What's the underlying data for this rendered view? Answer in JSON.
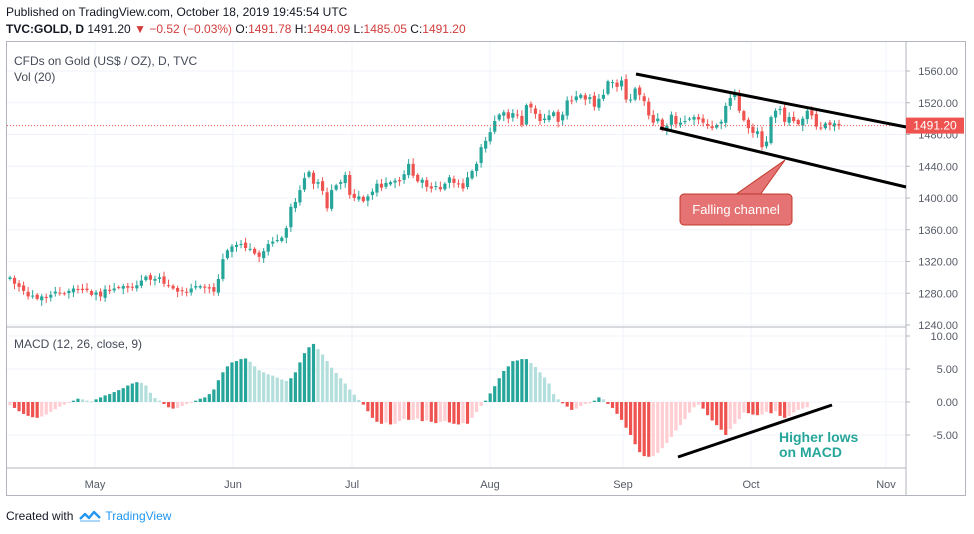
{
  "header": {
    "published": "Published on TradingView.com, October 18, 2019 19:45:54 UTC",
    "symbol_line": "TVC:GOLD, D",
    "last": "1491.20",
    "change": "−0.52 (−0.03%)",
    "o_label": "O:",
    "o_value": "1491.78",
    "h_label": "H:",
    "h_value": "1494.09",
    "l_label": "L:",
    "l_value": "1485.05",
    "c_label": "C:",
    "c_value": "1491.20"
  },
  "footer": {
    "created_with": "Created with",
    "brand": "TradingView"
  },
  "colors": {
    "up": "#26a69a",
    "down": "#ef5350",
    "up_light": "#b2dfdb",
    "down_light": "#ffcdd2",
    "price_tag": "#ef5350",
    "annotation_box": "#e57373",
    "annotation_text_green": "#26a69a"
  },
  "chart_data": [
    {
      "type": "candlestick",
      "title": "CFDs on Gold (US$ / OZ), D, TVC",
      "sub_indicator": "Vol (20)",
      "y_ticks": [
        "1560.00",
        "1520.00",
        "1480.00",
        "1440.00",
        "1400.00",
        "1360.00",
        "1320.00",
        "1280.00",
        "1240.00"
      ],
      "ylim": [
        1240,
        1570
      ],
      "x_ticks": [
        "May",
        "Jun",
        "Jul",
        "Aug",
        "Sep",
        "Oct",
        "Nov"
      ],
      "current_price_label": "1491.20",
      "current_price": 1491.2,
      "closes": [
        1300,
        1292,
        1288,
        1283,
        1276,
        1277,
        1273,
        1276,
        1274,
        1278,
        1282,
        1280,
        1279,
        1283,
        1286,
        1285,
        1284,
        1284,
        1278,
        1281,
        1276,
        1285,
        1283,
        1286,
        1287,
        1289,
        1287,
        1288,
        1290,
        1296,
        1301,
        1297,
        1298,
        1300,
        1292,
        1290,
        1286,
        1282,
        1283,
        1281,
        1286,
        1289,
        1289,
        1287,
        1286,
        1282,
        1298,
        1323,
        1334,
        1339,
        1341,
        1342,
        1337,
        1336,
        1330,
        1326,
        1333,
        1342,
        1345,
        1347,
        1350,
        1362,
        1389,
        1395,
        1410,
        1425,
        1433,
        1418,
        1420,
        1409,
        1387,
        1410,
        1416,
        1420,
        1429,
        1404,
        1400,
        1402,
        1396,
        1402,
        1408,
        1418,
        1413,
        1419,
        1420,
        1422,
        1421,
        1430,
        1443,
        1428,
        1421,
        1423,
        1414,
        1412,
        1415,
        1411,
        1418,
        1426,
        1419,
        1418,
        1412,
        1426,
        1434,
        1443,
        1464,
        1472,
        1483,
        1497,
        1505,
        1508,
        1500,
        1507,
        1504,
        1492,
        1517,
        1514,
        1506,
        1497,
        1500,
        1504,
        1508,
        1496,
        1505,
        1523,
        1522,
        1528,
        1530,
        1524,
        1527,
        1515,
        1525,
        1530,
        1547,
        1546,
        1540,
        1548,
        1524,
        1524,
        1538,
        1530,
        1522,
        1504,
        1495,
        1500,
        1486,
        1491,
        1505,
        1493,
        1495,
        1497,
        1500,
        1502,
        1499,
        1495,
        1491,
        1488,
        1492,
        1496,
        1516,
        1526,
        1531,
        1510,
        1498,
        1488,
        1482,
        1484,
        1464,
        1471,
        1502,
        1510,
        1512,
        1496,
        1502,
        1497,
        1493,
        1500,
        1510,
        1504,
        1490,
        1488,
        1494,
        1492,
        1494,
        1491.2
      ],
      "annotations": [
        "Falling channel"
      ]
    },
    {
      "type": "histogram",
      "title": "MACD (12, 26, close, 9)",
      "y_ticks": [
        "10.00",
        "5.00",
        "0.00",
        "-5.00"
      ],
      "ylim": [
        -9,
        10
      ],
      "values": [
        -0.5,
        -0.9,
        -1.4,
        -1.8,
        -2.1,
        -2.3,
        -2.4,
        -2.2,
        -1.9,
        -1.5,
        -1.1,
        -0.7,
        -0.4,
        -0.1,
        0.2,
        0.5,
        0.4,
        0.2,
        0.1,
        0.4,
        0.7,
        1.0,
        1.2,
        1.5,
        1.8,
        2.1,
        2.5,
        2.8,
        3.0,
        2.9,
        2.5,
        1.4,
        0.6,
        0.2,
        -0.3,
        -0.8,
        -1.0,
        -0.9,
        -0.6,
        -0.3,
        -0.1,
        0.2,
        0.5,
        0.7,
        1.2,
        1.9,
        3.3,
        4.5,
        5.4,
        6.0,
        6.2,
        6.5,
        6.6,
        6.1,
        5.4,
        4.8,
        4.5,
        4.2,
        4.0,
        3.7,
        3.4,
        3.2,
        3.6,
        4.5,
        6.0,
        7.4,
        8.3,
        8.8,
        8.0,
        7.2,
        6.2,
        5.2,
        4.4,
        3.6,
        2.8,
        1.9,
        1.1,
        0.3,
        -0.4,
        -1.4,
        -2.4,
        -3.0,
        -3.3,
        -3.1,
        -3.4,
        -3.3,
        -2.9,
        -2.6,
        -2.7,
        -2.7,
        -2.5,
        -2.9,
        -2.8,
        -3.0,
        -3.2,
        -3.0,
        -2.9,
        -3.1,
        -3.3,
        -3.4,
        -3.2,
        -3.3,
        -2.4,
        -1.5,
        -0.6,
        0.2,
        1.3,
        2.4,
        3.6,
        4.7,
        5.4,
        6.2,
        6.3,
        6.5,
        6.5,
        5.9,
        5.3,
        4.5,
        3.7,
        2.8,
        1.2,
        0.4,
        -0.2,
        -0.7,
        -1.2,
        -1.0,
        -0.6,
        -0.3,
        -0.2,
        0.2,
        0.7,
        0.4,
        -0.3,
        -0.9,
        -1.8,
        -2.7,
        -3.9,
        -5.0,
        -6.4,
        -7.6,
        -8.2,
        -8.3,
        -8.2,
        -7.7,
        -7.0,
        -6.2,
        -5.3,
        -4.3,
        -3.5,
        -2.6,
        -1.6,
        -0.8,
        -0.4,
        -1.0,
        -2.0,
        -2.8,
        -3.5,
        -4.2,
        -5.0,
        -4.1,
        -3.3,
        -2.6,
        -1.6,
        -1.7,
        -1.9,
        -2.0,
        -1.9,
        -1.5,
        -1.7,
        -1.4,
        -2.1,
        -2.4,
        -2.1,
        -1.6,
        -1.2,
        -1.0,
        -0.8
      ],
      "annotations": [
        "Higher lows",
        "on MACD"
      ]
    }
  ]
}
